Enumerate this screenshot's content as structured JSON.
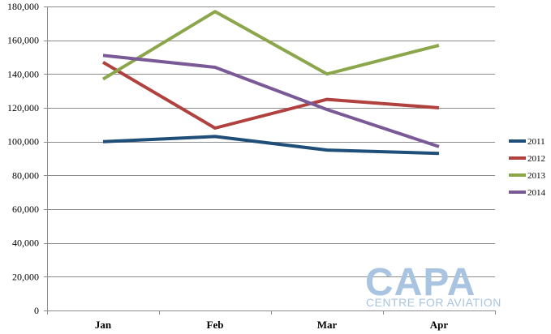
{
  "chart_data": {
    "type": "line",
    "title": "",
    "xlabel": "",
    "ylabel": "",
    "categories": [
      "Jan",
      "Feb",
      "Mar",
      "Apr"
    ],
    "ylim": [
      0,
      180000
    ],
    "yticks": [
      0,
      20000,
      40000,
      60000,
      80000,
      100000,
      120000,
      140000,
      160000,
      180000
    ],
    "ytick_labels": [
      "0",
      "20,000",
      "40,000",
      "60,000",
      "80,000",
      "100,000",
      "120,000",
      "140,000",
      "160,000",
      "180,000"
    ],
    "grid": true,
    "legend_position": "right",
    "series": [
      {
        "name": "2011",
        "color": "#1f4e79",
        "values": [
          100000,
          103000,
          95000,
          93000
        ]
      },
      {
        "name": "2012",
        "color": "#b0413e",
        "values": [
          147000,
          108000,
          125000,
          120000
        ]
      },
      {
        "name": "2013",
        "color": "#8ba64b",
        "values": [
          137000,
          177000,
          140000,
          157000
        ]
      },
      {
        "name": "2014",
        "color": "#7a5a96",
        "values": [
          151000,
          144000,
          119000,
          97000
        ]
      }
    ]
  },
  "watermark": {
    "main": "CAPA",
    "sub": "CENTRE FOR AVIATION"
  }
}
